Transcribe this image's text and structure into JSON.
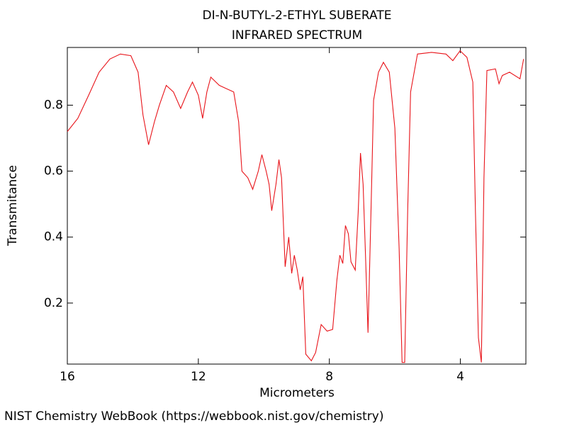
{
  "chart_data": {
    "type": "line",
    "title": "DI-N-BUTYL-2-ETHYL SUBERATE",
    "subtitle": "INFRARED SPECTRUM",
    "x_label": "Micrometers",
    "y_label": "Transmitance",
    "xlim": [
      16,
      2
    ],
    "ylim": [
      0.015,
      0.975
    ],
    "xticks": [
      16,
      12,
      8,
      4
    ],
    "yticks": [
      0.2,
      0.4,
      0.6,
      0.8
    ],
    "grid": false,
    "series": [
      {
        "color": "#e8141a",
        "x": [
          16,
          15.68,
          15.35,
          15.03,
          14.7,
          14.38,
          14.06,
          13.84,
          13.69,
          13.52,
          13.34,
          13.19,
          12.98,
          12.76,
          12.54,
          12.33,
          12.18,
          12.0,
          11.87,
          11.74,
          11.62,
          11.36,
          11.14,
          10.92,
          10.77,
          10.67,
          10.49,
          10.34,
          10.17,
          10.06,
          9.93,
          9.84,
          9.76,
          9.63,
          9.54,
          9.46,
          9.35,
          9.24,
          9.15,
          9.07,
          8.98,
          8.89,
          8.81,
          8.72,
          8.55,
          8.42,
          8.25,
          8.07,
          7.9,
          7.77,
          7.68,
          7.59,
          7.51,
          7.42,
          7.34,
          7.21,
          7.12,
          7.05,
          6.97,
          6.89,
          6.82,
          6.73,
          6.65,
          6.5,
          6.35,
          6.17,
          6.0,
          5.87,
          5.78,
          5.7,
          5.61,
          5.52,
          5.31,
          4.88,
          4.44,
          4.23,
          4.01,
          3.8,
          3.62,
          3.54,
          3.45,
          3.36,
          3.28,
          3.19,
          2.93,
          2.82,
          2.72,
          2.5,
          2.18,
          2.07
        ],
        "values": [
          0.72,
          0.76,
          0.83,
          0.9,
          0.94,
          0.955,
          0.95,
          0.9,
          0.77,
          0.68,
          0.75,
          0.8,
          0.86,
          0.84,
          0.79,
          0.84,
          0.87,
          0.83,
          0.76,
          0.84,
          0.885,
          0.86,
          0.85,
          0.84,
          0.75,
          0.6,
          0.58,
          0.545,
          0.6,
          0.65,
          0.6,
          0.56,
          0.48,
          0.56,
          0.635,
          0.58,
          0.31,
          0.4,
          0.29,
          0.345,
          0.3,
          0.24,
          0.28,
          0.045,
          0.025,
          0.05,
          0.135,
          0.115,
          0.12,
          0.27,
          0.345,
          0.32,
          0.435,
          0.41,
          0.325,
          0.3,
          0.475,
          0.655,
          0.56,
          0.325,
          0.11,
          0.475,
          0.815,
          0.9,
          0.93,
          0.9,
          0.73,
          0.365,
          0.02,
          0.02,
          0.475,
          0.84,
          0.955,
          0.96,
          0.955,
          0.935,
          0.965,
          0.945,
          0.87,
          0.475,
          0.095,
          0.02,
          0.58,
          0.905,
          0.91,
          0.865,
          0.89,
          0.9,
          0.88,
          0.94
        ]
      }
    ]
  },
  "footer": "NIST Chemistry WebBook (https://webbook.nist.gov/chemistry)"
}
